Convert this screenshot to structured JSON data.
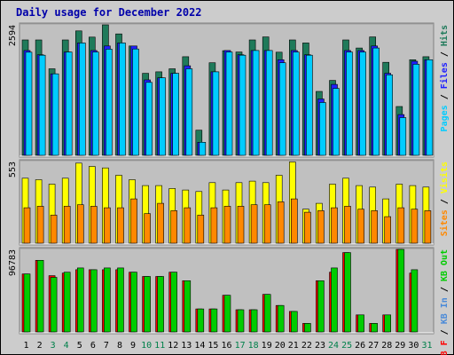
{
  "chart_data": {
    "type": "bar",
    "title": "Daily usage for December 2022",
    "days": [
      "1",
      "2",
      "3",
      "4",
      "5",
      "6",
      "7",
      "8",
      "9",
      "10",
      "11",
      "12",
      "13",
      "14",
      "15",
      "16",
      "17",
      "18",
      "19",
      "20",
      "21",
      "22",
      "23",
      "24",
      "25",
      "26",
      "27",
      "28",
      "29",
      "30",
      "31"
    ],
    "weekend_days": [
      "3",
      "4",
      "10",
      "11",
      "17",
      "18",
      "24",
      "25",
      "31"
    ],
    "panels": [
      {
        "id": "hits-files-pages",
        "scale_max_label": "2594",
        "ymax": 2594,
        "legend": [
          "Pages",
          "Files",
          "Hits"
        ],
        "series": [
          {
            "name": "Hits",
            "color": "#1f7a5a",
            "values": [
              2294,
              2294,
              1720,
              2294,
              2474,
              2350,
              2594,
              2414,
              2174,
              1630,
              1660,
              1720,
              1960,
              500,
              1840,
              2080,
              2054,
              2294,
              2354,
              2050,
              2294,
              2234,
              1270,
              1490,
              2294,
              2134,
              2354,
              1850,
              970,
              1900,
              1960
            ]
          },
          {
            "name": "Files",
            "color": "#2020ff",
            "values": [
              2084,
              2000,
              1620,
              2054,
              2234,
              2084,
              2174,
              2234,
              2174,
              1500,
              1540,
              1630,
              1780,
              260,
              1660,
              2084,
              2000,
              2084,
              2084,
              1900,
              2084,
              2000,
              1120,
              1410,
              2084,
              2084,
              2174,
              1630,
              810,
              1870,
              1900
            ]
          },
          {
            "name": "Pages",
            "color": "#00ccff",
            "values": [
              2050,
              1990,
              1620,
              2054,
              2234,
              2054,
              2110,
              2234,
              2114,
              1450,
              1540,
              1630,
              1720,
              260,
              1660,
              2054,
              1990,
              2084,
              2084,
              1840,
              2054,
              1990,
              1050,
              1330,
              2054,
              2054,
              2134,
              1600,
              750,
              1810,
              1900
            ]
          }
        ]
      },
      {
        "id": "visits-sites",
        "scale_max_label": "553",
        "ymax": 553,
        "legend": [
          "Sites",
          "Visits"
        ],
        "series": [
          {
            "name": "Visits",
            "color": "#ffff00",
            "values": [
              440,
              430,
              400,
              440,
              542,
              520,
              510,
              460,
              430,
              390,
              390,
              370,
              360,
              350,
              410,
              360,
              410,
              420,
              410,
              460,
              550,
              230,
              270,
              400,
              440,
              390,
              380,
              300,
              400,
              390,
              380
            ]
          },
          {
            "name": "Sites",
            "color": "#ff8800",
            "values": [
              240,
              250,
              190,
              250,
              260,
              250,
              240,
              240,
              300,
              200,
              270,
              220,
              240,
              190,
              240,
              250,
              250,
              260,
              260,
              280,
              300,
              210,
              220,
              240,
              250,
              230,
              220,
              180,
              240,
              230,
              220
            ]
          }
        ]
      },
      {
        "id": "kbytes",
        "scale_max_label": "96783",
        "ymax": 96783,
        "legend": [
          "KB F",
          "KB In",
          "KB Out"
        ],
        "series": [
          {
            "name": "KB F",
            "color": "#ff0000",
            "values": [
              68000,
              84000,
              66000,
              69000,
              73000,
              73000,
              73000,
              73000,
              70000,
              65000,
              65000,
              70000,
              60000,
              27000,
              27000,
              43000,
              26000,
              26000,
              44000,
              31000,
              24000,
              10000,
              60000,
              70000,
              93000,
              20000,
              10000,
              20000,
              100000,
              69000,
              0
            ]
          },
          {
            "name": "KB Out",
            "color": "#00cc00",
            "values": [
              68000,
              84000,
              64000,
              70000,
              75000,
              73000,
              75000,
              75000,
              70000,
              65000,
              65000,
              70000,
              60000,
              27000,
              27000,
              43000,
              26000,
              26000,
              44000,
              31000,
              24000,
              10000,
              60000,
              75000,
              93000,
              20000,
              10000,
              20000,
              100000,
              73000,
              0
            ]
          },
          {
            "name": "KB In",
            "color": "#4a8ad8",
            "values": []
          }
        ]
      }
    ]
  }
}
